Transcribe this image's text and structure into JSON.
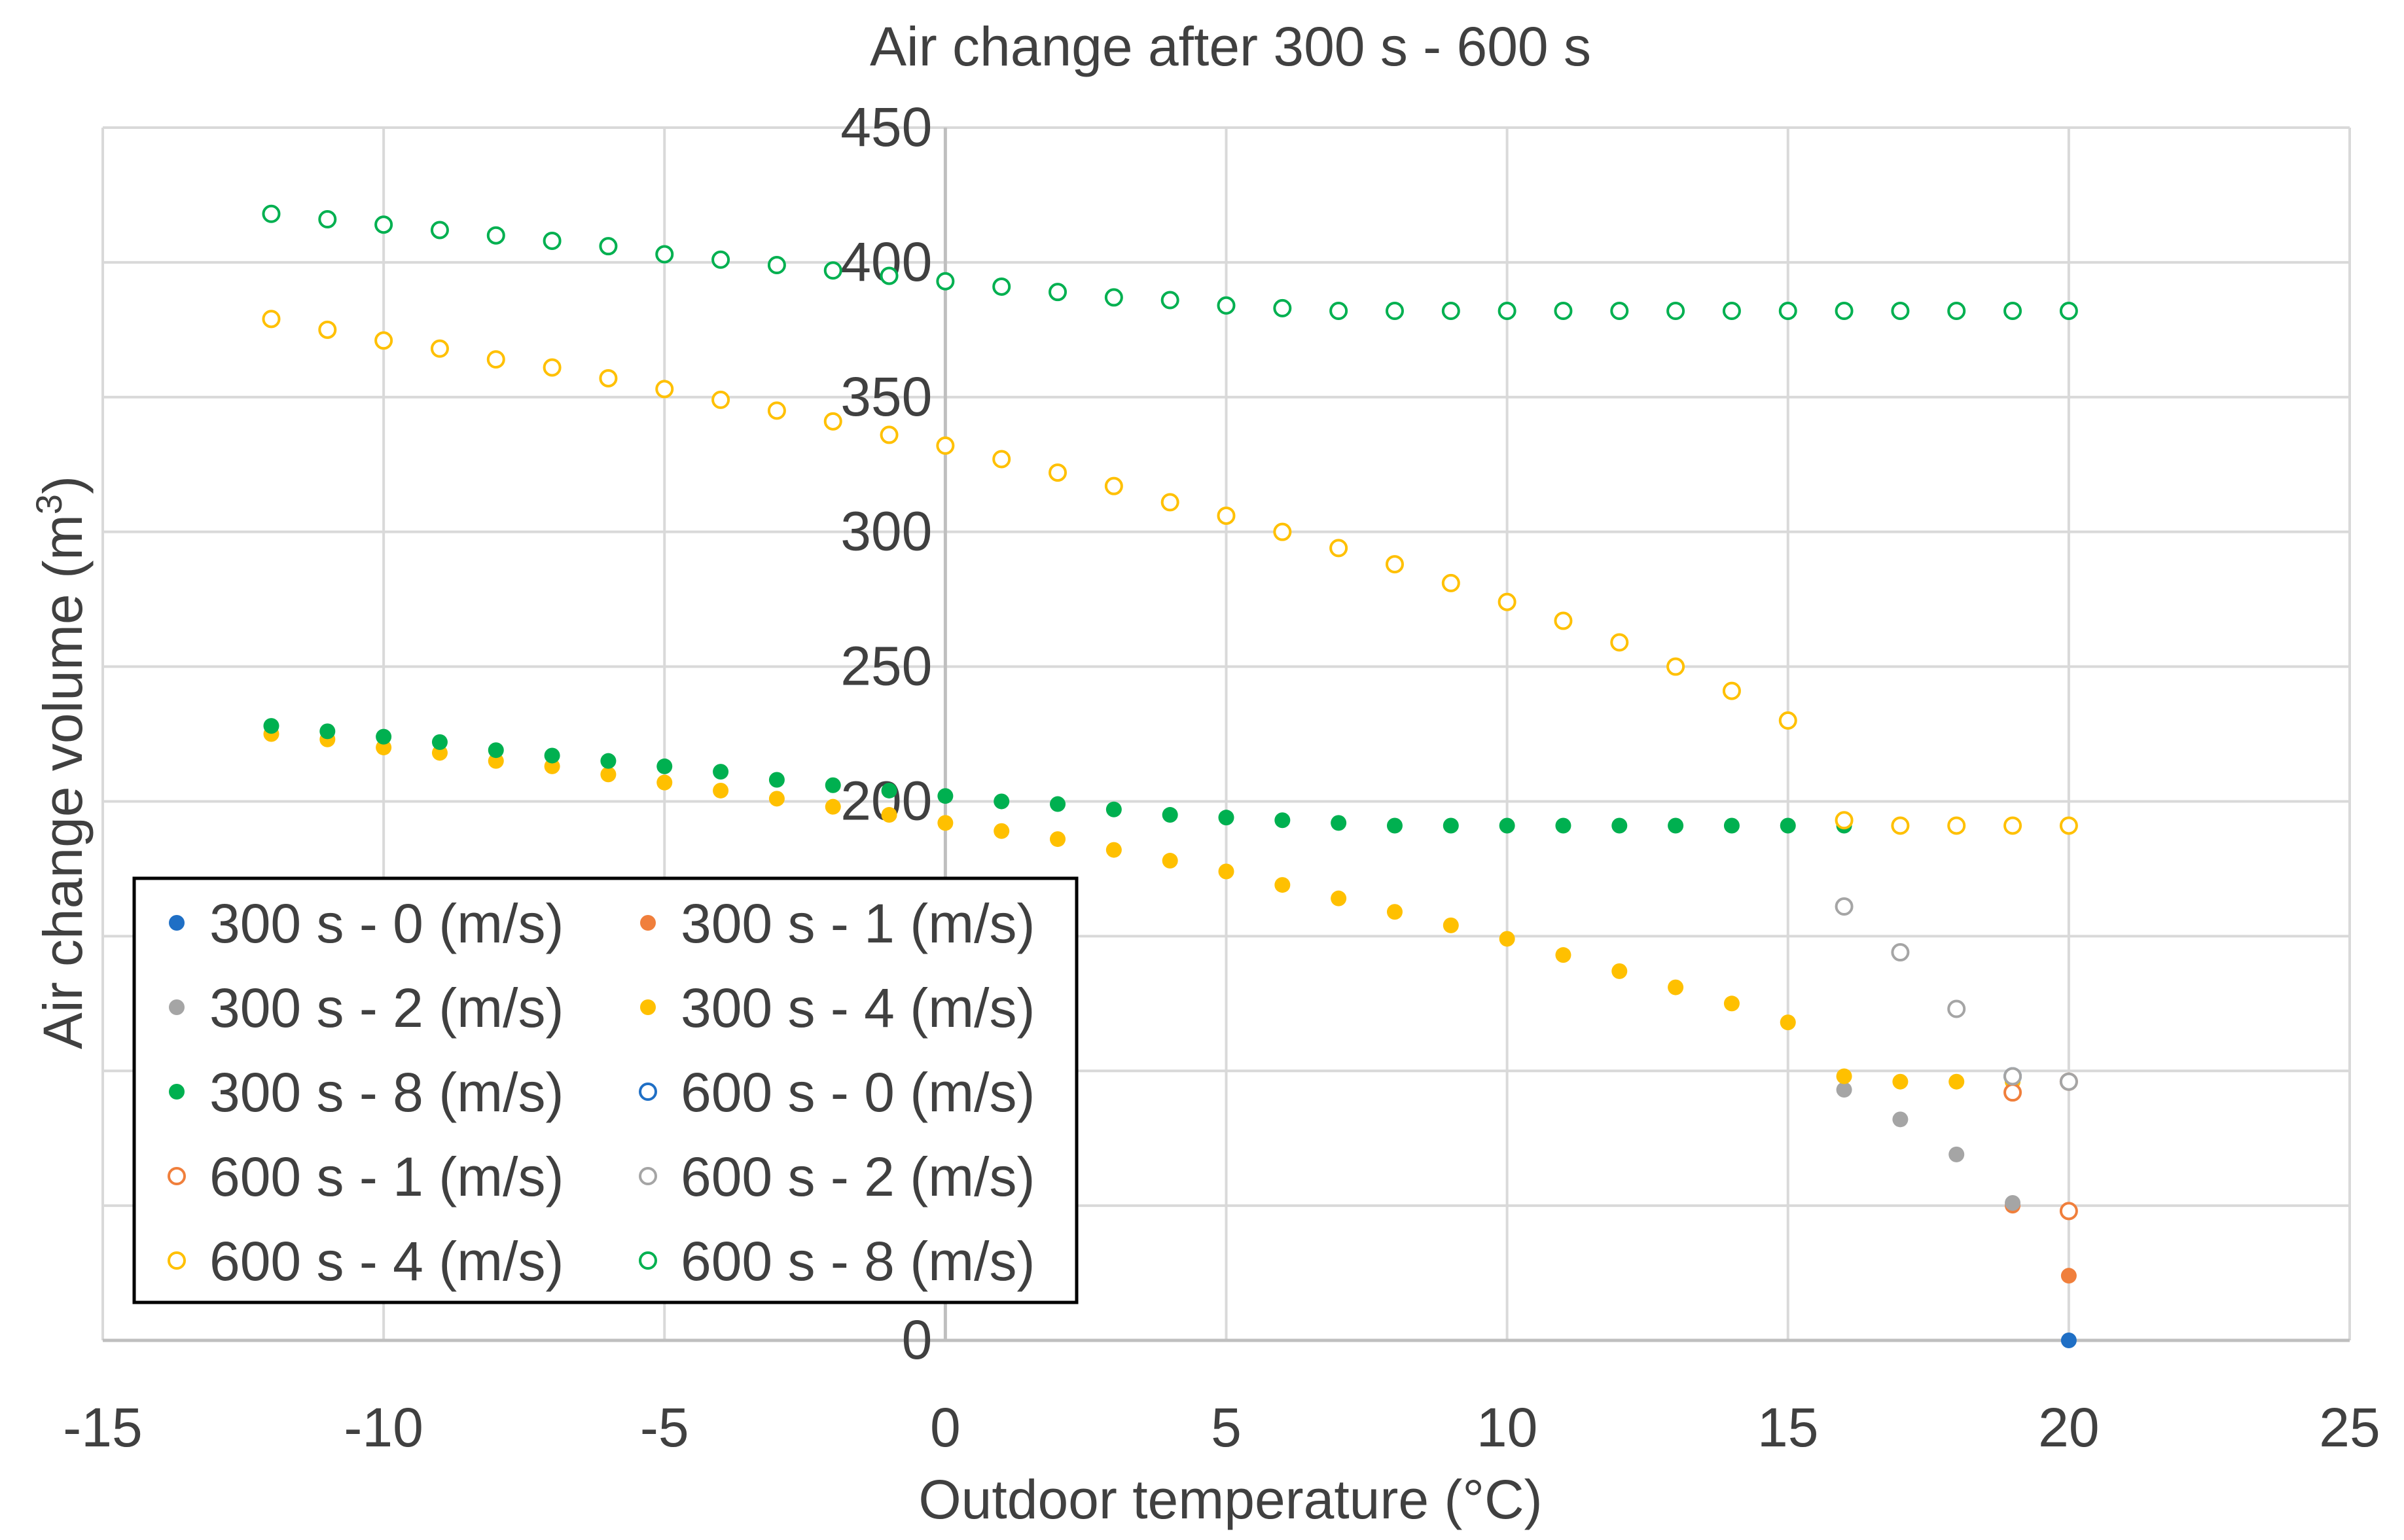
{
  "chart_data": {
    "type": "scatter",
    "title": "Air change after 300 s - 600 s",
    "xlabel": "Outdoor temperature (°C)",
    "ylabel_text": "Air change volume (m",
    "ylabel_sup": "3",
    "ylabel_close": ")",
    "xlim": [
      -15,
      25
    ],
    "ylim": [
      0,
      450
    ],
    "xticks": [
      "-15",
      "-10",
      "-5",
      "0",
      "5",
      "10",
      "15",
      "20",
      "25"
    ],
    "yticks": [
      "0",
      "200",
      "250",
      "300",
      "350",
      "400",
      "450"
    ],
    "ytick_values": [
      0,
      200,
      250,
      300,
      350,
      400,
      450
    ],
    "gridlines_y": [
      50,
      100,
      150,
      200,
      250,
      300,
      350,
      400,
      450
    ],
    "gridlines_x": [
      -15,
      -10,
      -5,
      0,
      5,
      10,
      15,
      20,
      25
    ],
    "legend_position": "bottom-left",
    "colors": {
      "blue": "#1f6fc5",
      "orange": "#f07f3c",
      "gray": "#a5a5a5",
      "gold": "#ffc000",
      "green": "#00b050",
      "grid": "#d9d9d9",
      "axis": "#bfbfbf",
      "text": "#404040"
    },
    "series": [
      {
        "name": "300 s - 0 (m/s)",
        "color": "#1f6fc5",
        "filled": true,
        "points": [
          [
            20,
            0
          ]
        ]
      },
      {
        "name": "300 s - 1 (m/s)",
        "color": "#f07f3c",
        "filled": true,
        "points": [
          [
            19,
            50
          ],
          [
            20,
            24
          ],
          [
            20,
            48
          ]
        ]
      },
      {
        "name": "300 s - 2 (m/s)",
        "color": "#a5a5a5",
        "filled": true,
        "points": [
          [
            16,
            93
          ],
          [
            17,
            82
          ],
          [
            18,
            69
          ],
          [
            19,
            51
          ],
          [
            20,
            48
          ]
        ]
      },
      {
        "name": "300 s - 4 (m/s)",
        "color": "#ffc000",
        "filled": true,
        "points": [
          [
            -12,
            225
          ],
          [
            -11,
            223
          ],
          [
            -10,
            220
          ],
          [
            -9,
            218
          ],
          [
            -8,
            215
          ],
          [
            -7,
            213
          ],
          [
            -6,
            210
          ],
          [
            -5,
            207
          ],
          [
            -4,
            204
          ],
          [
            -3,
            201
          ],
          [
            -2,
            198
          ],
          [
            -1,
            195
          ],
          [
            0,
            192
          ],
          [
            1,
            189
          ],
          [
            2,
            186
          ],
          [
            3,
            182
          ],
          [
            4,
            178
          ],
          [
            5,
            174
          ],
          [
            6,
            169
          ],
          [
            7,
            164
          ],
          [
            8,
            159
          ],
          [
            9,
            154
          ],
          [
            10,
            149
          ],
          [
            11,
            143
          ],
          [
            12,
            137
          ],
          [
            13,
            131
          ],
          [
            14,
            125
          ],
          [
            15,
            118
          ],
          [
            16,
            98
          ],
          [
            17,
            96
          ],
          [
            18,
            96
          ],
          [
            19,
            96
          ],
          [
            20,
            96
          ]
        ]
      },
      {
        "name": "300 s - 8 (m/s)",
        "color": "#00b050",
        "filled": true,
        "points": [
          [
            -12,
            228
          ],
          [
            -11,
            226
          ],
          [
            -10,
            224
          ],
          [
            -9,
            222
          ],
          [
            -8,
            219
          ],
          [
            -7,
            217
          ],
          [
            -6,
            215
          ],
          [
            -5,
            213
          ],
          [
            -4,
            211
          ],
          [
            -3,
            208
          ],
          [
            -2,
            206
          ],
          [
            -1,
            204
          ],
          [
            0,
            202
          ],
          [
            1,
            200
          ],
          [
            2,
            199
          ],
          [
            3,
            197
          ],
          [
            4,
            195
          ],
          [
            5,
            194
          ],
          [
            6,
            193
          ],
          [
            7,
            192
          ],
          [
            8,
            191
          ],
          [
            9,
            191
          ],
          [
            10,
            191
          ],
          [
            11,
            191
          ],
          [
            12,
            191
          ],
          [
            13,
            191
          ],
          [
            14,
            191
          ],
          [
            15,
            191
          ],
          [
            16,
            191
          ],
          [
            17,
            191
          ],
          [
            18,
            191
          ],
          [
            19,
            191
          ],
          [
            20,
            191
          ]
        ]
      },
      {
        "name": "600 s - 0 (m/s)",
        "color": "#1f6fc5",
        "filled": false,
        "points": [
          [
            19,
            98
          ]
        ]
      },
      {
        "name": "600 s - 1 (m/s)",
        "color": "#f07f3c",
        "filled": false,
        "points": [
          [
            19,
            92
          ],
          [
            20,
            96
          ],
          [
            20,
            48
          ]
        ]
      },
      {
        "name": "600 s - 2 (m/s)",
        "color": "#a5a5a5",
        "filled": false,
        "points": [
          [
            16,
            161
          ],
          [
            17,
            144
          ],
          [
            18,
            123
          ],
          [
            19,
            98
          ],
          [
            20,
            96
          ]
        ]
      },
      {
        "name": "600 s - 4 (m/s)",
        "color": "#ffc000",
        "filled": false,
        "points": [
          [
            -12,
            379
          ],
          [
            -11,
            375
          ],
          [
            -10,
            371
          ],
          [
            -9,
            368
          ],
          [
            -8,
            364
          ],
          [
            -7,
            361
          ],
          [
            -6,
            357
          ],
          [
            -5,
            353
          ],
          [
            -4,
            349
          ],
          [
            -3,
            345
          ],
          [
            -2,
            341
          ],
          [
            -1,
            336
          ],
          [
            0,
            332
          ],
          [
            1,
            327
          ],
          [
            2,
            322
          ],
          [
            3,
            317
          ],
          [
            4,
            311
          ],
          [
            5,
            306
          ],
          [
            6,
            300
          ],
          [
            7,
            294
          ],
          [
            8,
            288
          ],
          [
            9,
            281
          ],
          [
            10,
            274
          ],
          [
            11,
            267
          ],
          [
            12,
            259
          ],
          [
            13,
            250
          ],
          [
            14,
            241
          ],
          [
            15,
            230
          ],
          [
            16,
            193
          ],
          [
            17,
            191
          ],
          [
            18,
            191
          ],
          [
            19,
            191
          ],
          [
            20,
            191
          ]
        ]
      },
      {
        "name": "600 s - 8 (m/s)",
        "color": "#00b050",
        "filled": false,
        "points": [
          [
            -12,
            418
          ],
          [
            -11,
            416
          ],
          [
            -10,
            414
          ],
          [
            -9,
            412
          ],
          [
            -8,
            410
          ],
          [
            -7,
            408
          ],
          [
            -6,
            406
          ],
          [
            -5,
            403
          ],
          [
            -4,
            401
          ],
          [
            -3,
            399
          ],
          [
            -2,
            397
          ],
          [
            -1,
            395
          ],
          [
            0,
            393
          ],
          [
            1,
            391
          ],
          [
            2,
            389
          ],
          [
            3,
            387
          ],
          [
            4,
            386
          ],
          [
            5,
            384
          ],
          [
            6,
            383
          ],
          [
            7,
            382
          ],
          [
            8,
            382
          ],
          [
            9,
            382
          ],
          [
            10,
            382
          ],
          [
            11,
            382
          ],
          [
            12,
            382
          ],
          [
            13,
            382
          ],
          [
            14,
            382
          ],
          [
            15,
            382
          ],
          [
            16,
            382
          ],
          [
            17,
            382
          ],
          [
            18,
            382
          ],
          [
            19,
            382
          ],
          [
            20,
            382
          ]
        ]
      }
    ]
  }
}
